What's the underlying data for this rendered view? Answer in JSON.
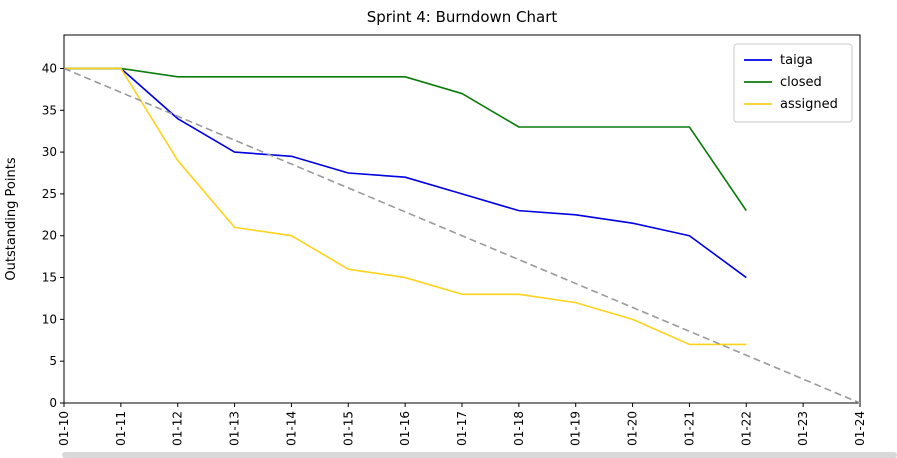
{
  "window": {
    "background": "#ffffff"
  },
  "chart_data": {
    "type": "line",
    "title": "Sprint 4: Burndown Chart",
    "xlabel": "",
    "ylabel": "Outstanding Points",
    "ylim": [
      0,
      44
    ],
    "yticks": [
      0,
      5,
      10,
      15,
      20,
      25,
      30,
      35,
      40
    ],
    "categories": [
      "01-10",
      "01-11",
      "01-12",
      "01-13",
      "01-14",
      "01-15",
      "01-16",
      "01-17",
      "01-18",
      "01-19",
      "01-20",
      "01-21",
      "01-22",
      "01-23",
      "01-24"
    ],
    "grid": false,
    "legend": {
      "position": "upper right",
      "entries": [
        "taiga",
        "closed",
        "assigned"
      ]
    },
    "series": [
      {
        "name": "taiga",
        "color": "#0000e0",
        "dash": "none",
        "in_legend": true,
        "x": [
          "01-10",
          "01-11",
          "01-12",
          "01-13",
          "01-14",
          "01-15",
          "01-16",
          "01-17",
          "01-18",
          "01-19",
          "01-20",
          "01-21",
          "01-22"
        ],
        "values": [
          40,
          40,
          34,
          30,
          29.5,
          27.5,
          27,
          25,
          23,
          22.5,
          21.5,
          20,
          15
        ]
      },
      {
        "name": "closed",
        "color": "#0b7d0b",
        "dash": "none",
        "in_legend": true,
        "x": [
          "01-10",
          "01-11",
          "01-12",
          "01-13",
          "01-14",
          "01-15",
          "01-16",
          "01-17",
          "01-18",
          "01-19",
          "01-20",
          "01-21",
          "01-22"
        ],
        "values": [
          40,
          40,
          39,
          39,
          39,
          39,
          39,
          37,
          33,
          33,
          33,
          33,
          23
        ]
      },
      {
        "name": "assigned",
        "color": "#ffd21c",
        "dash": "none",
        "in_legend": true,
        "x": [
          "01-10",
          "01-11",
          "01-12",
          "01-13",
          "01-14",
          "01-15",
          "01-16",
          "01-17",
          "01-18",
          "01-19",
          "01-20",
          "01-21",
          "01-22"
        ],
        "values": [
          40,
          40,
          29,
          21,
          20,
          16,
          15,
          13,
          13,
          12,
          10,
          7,
          7
        ]
      },
      {
        "name": "ideal",
        "color": "#9a9a9a",
        "dash": "7 4",
        "in_legend": false,
        "x": [
          "01-10",
          "01-24"
        ],
        "values": [
          40,
          0
        ]
      }
    ]
  }
}
